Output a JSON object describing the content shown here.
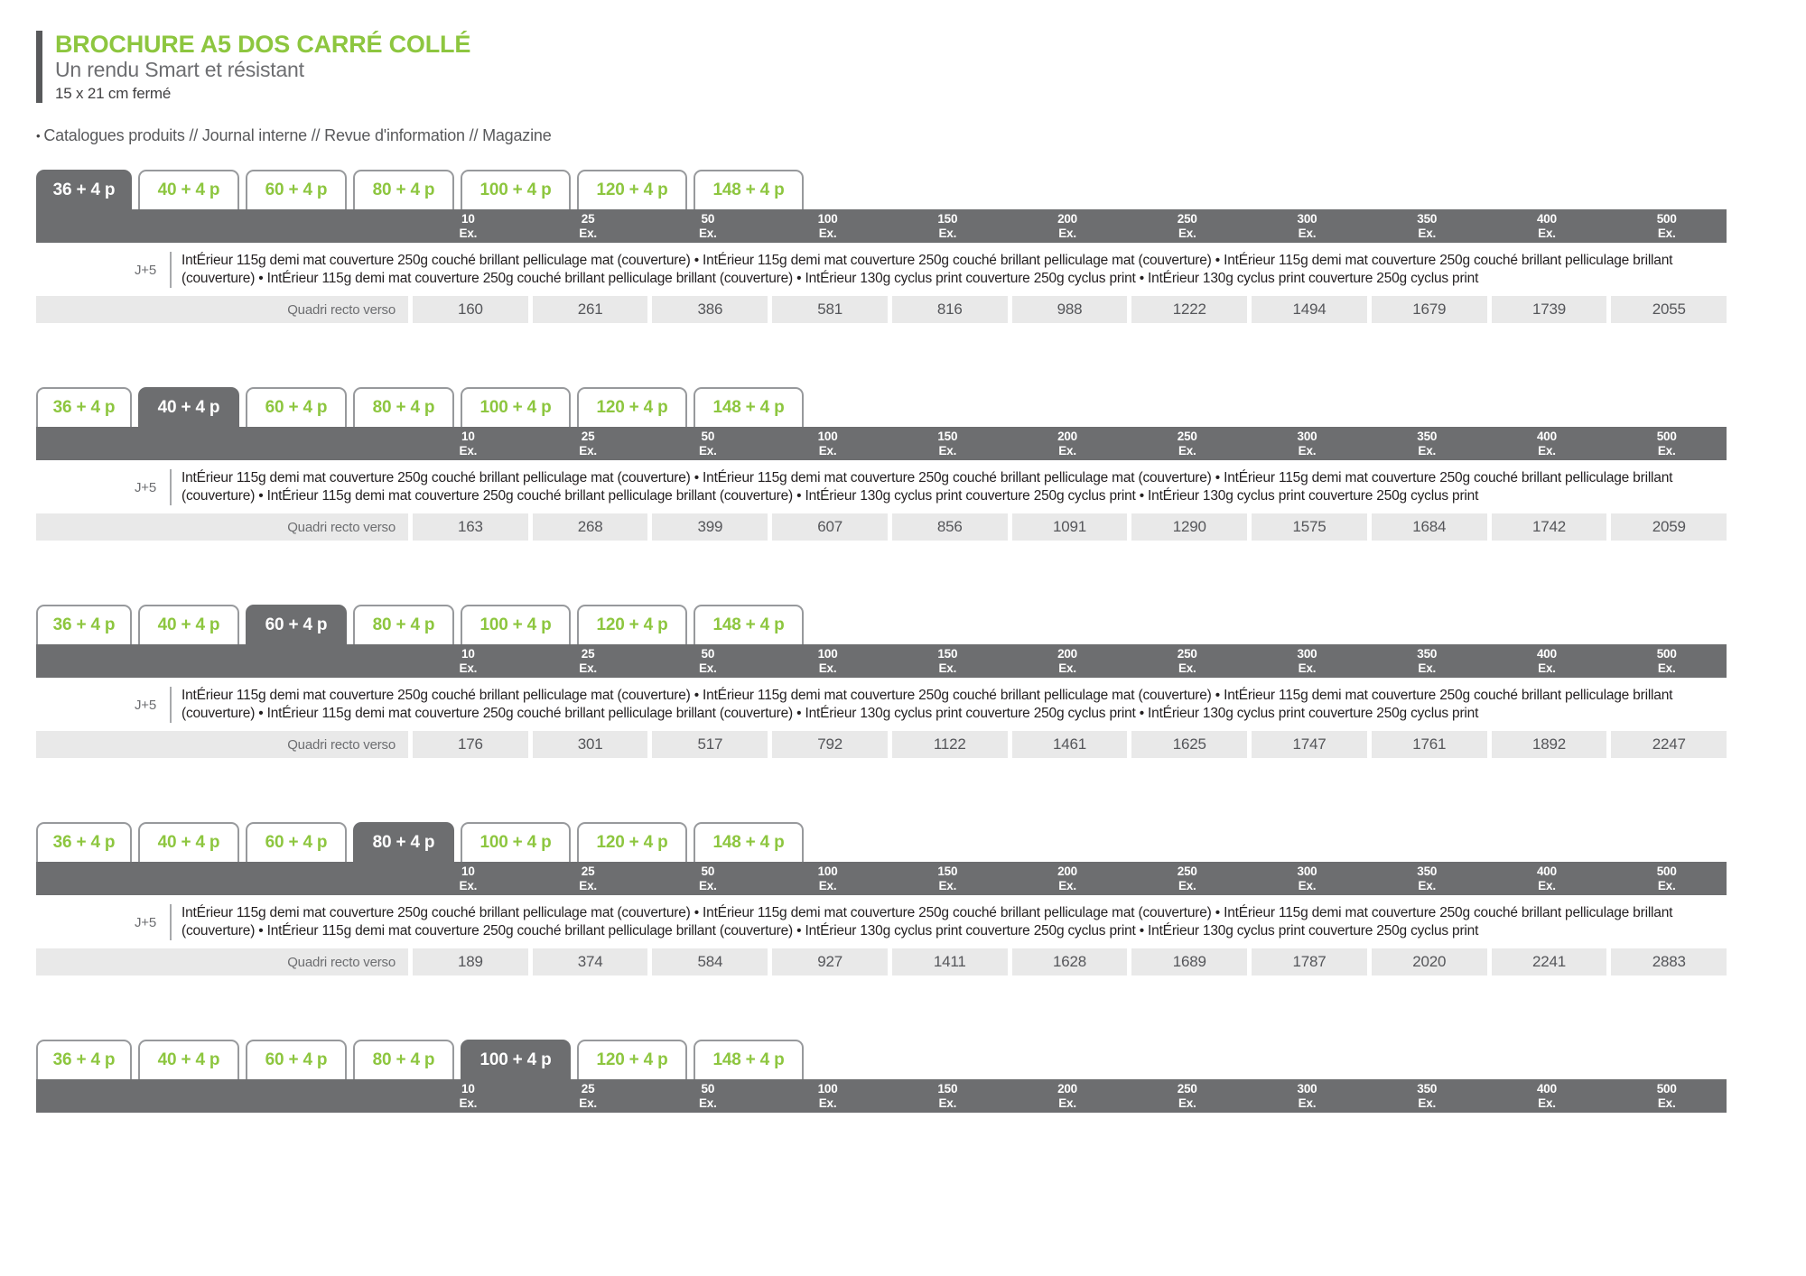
{
  "header": {
    "title": "BROCHURE A5 DOS CARRÉ COLLÉ",
    "subtitle": "Un rendu Smart et résistant",
    "format": "15 x 21 cm fermé",
    "bullet": "•",
    "uses": "Catalogues produits // Journal interne // Revue d'information // Magazine"
  },
  "colors": {
    "green": "#8DC63F",
    "dark_gray": "#6D6E70",
    "row_background": "#E9E9E9",
    "tab_border": "#97999C",
    "text_gray": "#58595B"
  },
  "tabs": [
    "36 + 4 p",
    "40 + 4 p",
    "60 + 4 p",
    "80 + 4 p",
    "100 + 4 p",
    "120 + 4 p",
    "148 + 4 p"
  ],
  "quantities": [
    "10",
    "25",
    "50",
    "100",
    "150",
    "200",
    "250",
    "300",
    "350",
    "400",
    "500"
  ],
  "quantity_unit": "Ex.",
  "delay_label": "J+5",
  "description": "IntÉrieur 115g demi mat couverture 250g couché brillant pelliculage mat (couverture)  •  IntÉrieur 115g demi mat couverture 250g couché brillant pelliculage mat (couverture)  •  IntÉrieur 115g demi mat couverture 250g couché brillant pelliculage brillant (couverture)  •  IntÉrieur 115g demi mat couverture 250g couché brillant pelliculage brillant (couverture)  •  IntÉrieur 130g cyclus print couverture 250g cyclus print  •  IntÉrieur 130g cyclus print couverture 250g cyclus print",
  "price_row_label": "Quadri recto verso",
  "sections": [
    {
      "active_tab": 0,
      "prices": [
        "160",
        "261",
        "386",
        "581",
        "816",
        "988",
        "1222",
        "1494",
        "1679",
        "1739",
        "2055"
      ]
    },
    {
      "active_tab": 1,
      "prices": [
        "163",
        "268",
        "399",
        "607",
        "856",
        "1091",
        "1290",
        "1575",
        "1684",
        "1742",
        "2059"
      ]
    },
    {
      "active_tab": 2,
      "prices": [
        "176",
        "301",
        "517",
        "792",
        "1122",
        "1461",
        "1625",
        "1747",
        "1761",
        "1892",
        "2247"
      ]
    },
    {
      "active_tab": 3,
      "prices": [
        "189",
        "374",
        "584",
        "927",
        "1411",
        "1628",
        "1689",
        "1787",
        "2020",
        "2241",
        "2883"
      ]
    },
    {
      "active_tab": 4,
      "prices": []
    }
  ]
}
